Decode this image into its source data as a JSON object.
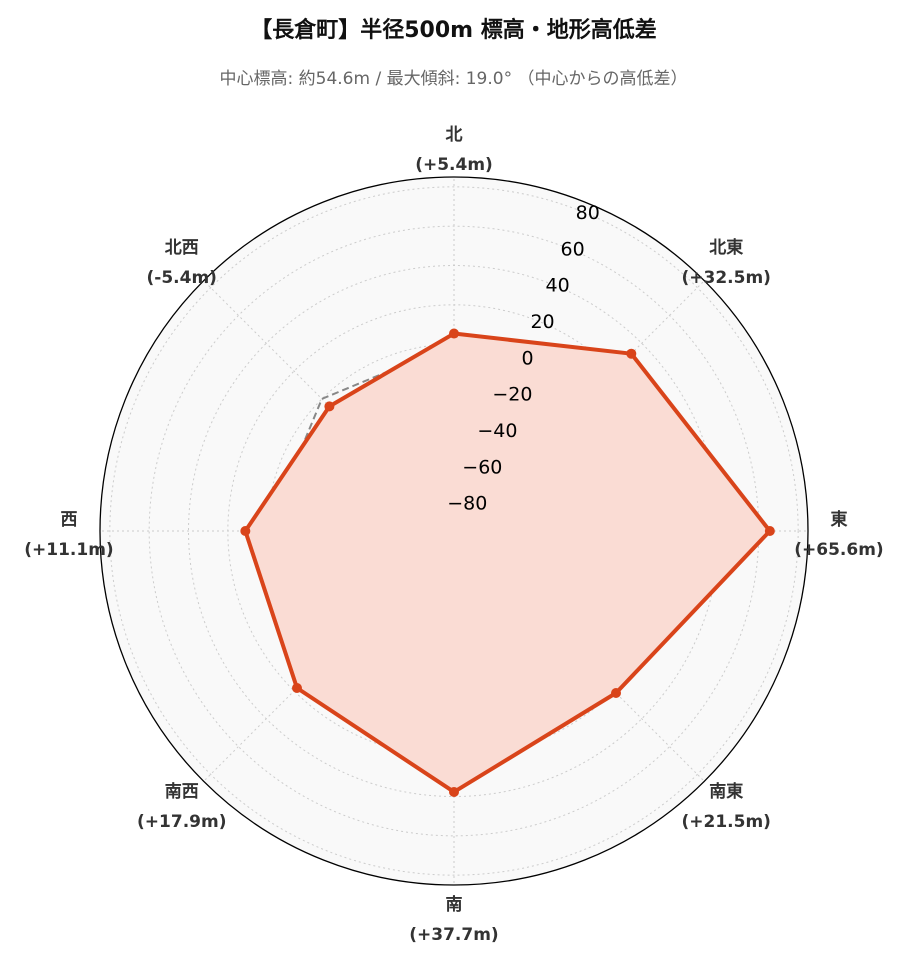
{
  "title": "【長倉町】半径500m 標高・地形高低差",
  "subtitle": "中心標高: 約54.6m / 最大傾斜: 19.0° （中心からの高低差）",
  "chart_data": {
    "type": "radar",
    "title": "【長倉町】半径500m 標高・地形高低差",
    "subtitle": "中心標高: 約54.6m / 最大傾斜: 19.0° （中心からの高低差）",
    "categories": [
      "北",
      "北東",
      "東",
      "南東",
      "南",
      "南西",
      "西",
      "北西"
    ],
    "category_labels": [
      "(+5.4m)",
      "(+32.5m)",
      "(+65.6m)",
      "(+21.5m)",
      "(+37.7m)",
      "(+17.9m)",
      "(+11.1m)",
      "(-5.4m)"
    ],
    "series": [
      {
        "values": [
          5.4,
          32.5,
          65.6,
          21.5,
          37.7,
          17.9,
          11.1,
          -5.4
        ],
        "color": "#d9441a",
        "fill": "#fadcd4"
      },
      {
        "values": [
          0,
          0,
          0,
          0,
          0,
          0,
          0,
          0
        ],
        "color": "#888888",
        "style": "dashed"
      }
    ],
    "r_ticks": [
      -80,
      -60,
      -40,
      -20,
      0,
      20,
      40,
      60,
      80
    ],
    "r_tick_labels": [
      "−80",
      "−60",
      "−40",
      "−20",
      "0",
      "20",
      "40",
      "60",
      "80"
    ],
    "rlim": [
      -95,
      85
    ],
    "grid": true,
    "background": "#f9f9f9"
  }
}
